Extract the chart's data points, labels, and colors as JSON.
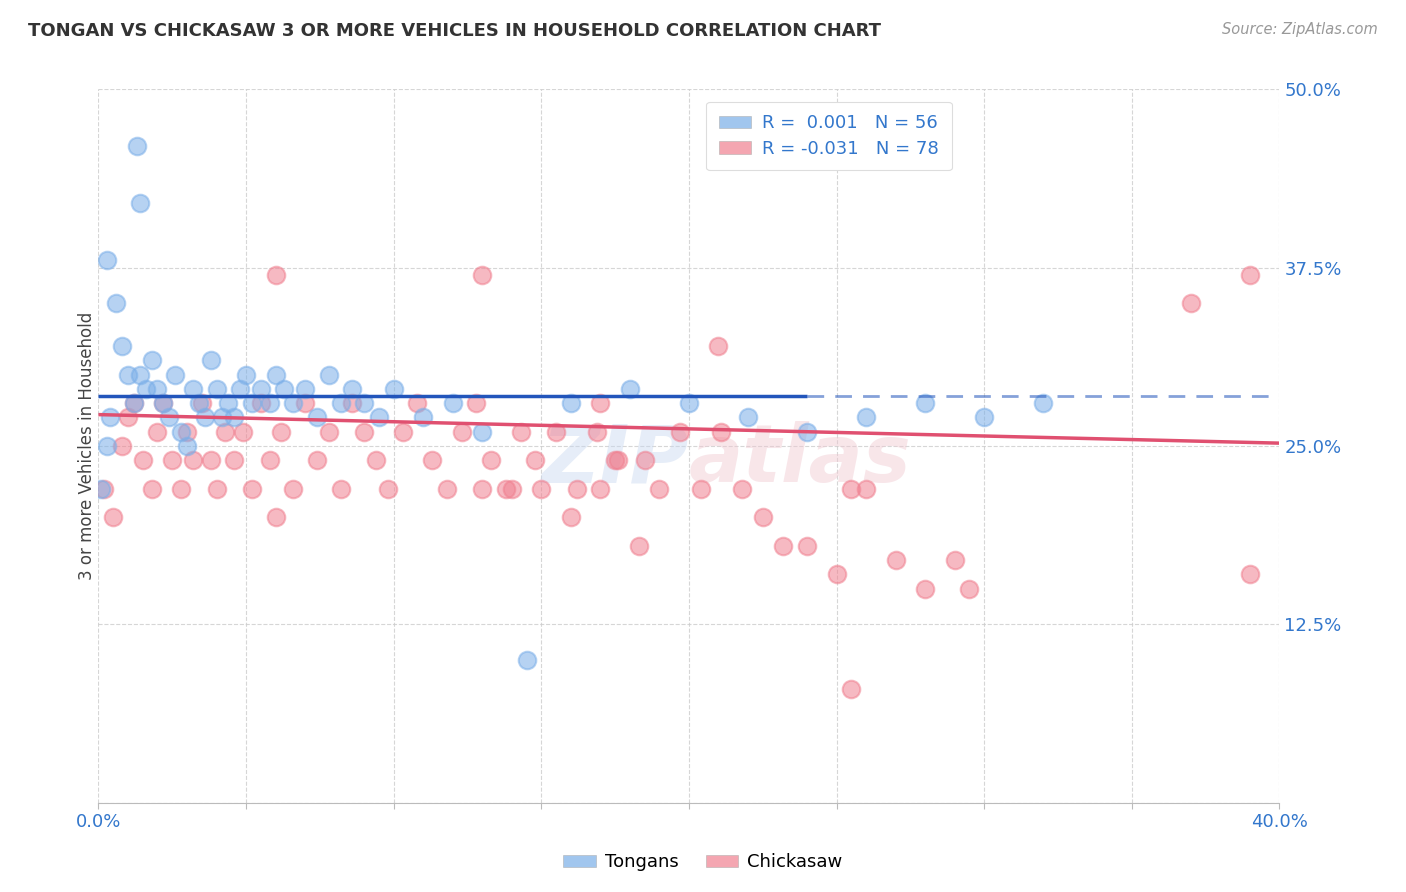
{
  "title": "TONGAN VS CHICKASAW 3 OR MORE VEHICLES IN HOUSEHOLD CORRELATION CHART",
  "source": "Source: ZipAtlas.com",
  "ylabel": "3 or more Vehicles in Household",
  "xmin": 0.0,
  "xmax": 0.4,
  "ymin": 0.0,
  "ymax": 0.5,
  "tongan_color": "#7aaee8",
  "chickasaw_color": "#f08090",
  "tongan_line_color": "#2255bb",
  "chickasaw_line_color": "#e05070",
  "background_color": "#ffffff",
  "grid_color": "#cccccc",
  "watermark": "ZIPatlas",
  "tongan_R": 0.001,
  "tongan_N": 56,
  "chickasaw_R": -0.031,
  "chickasaw_N": 78,
  "tongan_line_solid_end": 0.24,
  "tongan_line_y": 0.285,
  "chickasaw_line_y_start": 0.272,
  "chickasaw_line_y_end": 0.252,
  "tongan_x": [
    0.001,
    0.003,
    0.004,
    0.008,
    0.01,
    0.012,
    0.014,
    0.016,
    0.018,
    0.02,
    0.022,
    0.024,
    0.026,
    0.028,
    0.03,
    0.032,
    0.034,
    0.036,
    0.038,
    0.04,
    0.042,
    0.044,
    0.046,
    0.048,
    0.05,
    0.052,
    0.055,
    0.058,
    0.06,
    0.063,
    0.066,
    0.07,
    0.074,
    0.078,
    0.082,
    0.086,
    0.09,
    0.095,
    0.1,
    0.11,
    0.12,
    0.13,
    0.145,
    0.16,
    0.18,
    0.2,
    0.22,
    0.24,
    0.26,
    0.28,
    0.3,
    0.32,
    0.013,
    0.014,
    0.003,
    0.006
  ],
  "tongan_y": [
    0.22,
    0.25,
    0.27,
    0.32,
    0.3,
    0.28,
    0.3,
    0.29,
    0.31,
    0.29,
    0.28,
    0.27,
    0.3,
    0.26,
    0.25,
    0.29,
    0.28,
    0.27,
    0.31,
    0.29,
    0.27,
    0.28,
    0.27,
    0.29,
    0.3,
    0.28,
    0.29,
    0.28,
    0.3,
    0.29,
    0.28,
    0.29,
    0.27,
    0.3,
    0.28,
    0.29,
    0.28,
    0.27,
    0.29,
    0.27,
    0.28,
    0.26,
    0.1,
    0.28,
    0.29,
    0.28,
    0.27,
    0.26,
    0.27,
    0.28,
    0.27,
    0.28,
    0.46,
    0.42,
    0.38,
    0.35
  ],
  "chickasaw_x": [
    0.002,
    0.005,
    0.008,
    0.01,
    0.012,
    0.015,
    0.018,
    0.02,
    0.022,
    0.025,
    0.028,
    0.03,
    0.032,
    0.035,
    0.038,
    0.04,
    0.043,
    0.046,
    0.049,
    0.052,
    0.055,
    0.058,
    0.062,
    0.066,
    0.07,
    0.074,
    0.078,
    0.082,
    0.086,
    0.09,
    0.094,
    0.098,
    0.103,
    0.108,
    0.113,
    0.118,
    0.123,
    0.128,
    0.133,
    0.138,
    0.143,
    0.148,
    0.155,
    0.162,
    0.169,
    0.176,
    0.183,
    0.19,
    0.197,
    0.204,
    0.211,
    0.218,
    0.225,
    0.232,
    0.24,
    0.25,
    0.26,
    0.27,
    0.28,
    0.29,
    0.06,
    0.13,
    0.39,
    0.37,
    0.21,
    0.255,
    0.17,
    0.185,
    0.14,
    0.15,
    0.16,
    0.17,
    0.175,
    0.13,
    0.06,
    0.39,
    0.295,
    0.255
  ],
  "chickasaw_y": [
    0.22,
    0.2,
    0.25,
    0.27,
    0.28,
    0.24,
    0.22,
    0.26,
    0.28,
    0.24,
    0.22,
    0.26,
    0.24,
    0.28,
    0.24,
    0.22,
    0.26,
    0.24,
    0.26,
    0.22,
    0.28,
    0.24,
    0.26,
    0.22,
    0.28,
    0.24,
    0.26,
    0.22,
    0.28,
    0.26,
    0.24,
    0.22,
    0.26,
    0.28,
    0.24,
    0.22,
    0.26,
    0.28,
    0.24,
    0.22,
    0.26,
    0.24,
    0.26,
    0.22,
    0.26,
    0.24,
    0.18,
    0.22,
    0.26,
    0.22,
    0.26,
    0.22,
    0.2,
    0.18,
    0.18,
    0.16,
    0.22,
    0.17,
    0.15,
    0.17,
    0.37,
    0.37,
    0.37,
    0.35,
    0.32,
    0.22,
    0.28,
    0.24,
    0.22,
    0.22,
    0.2,
    0.22,
    0.24,
    0.22,
    0.2,
    0.16,
    0.15,
    0.08
  ]
}
